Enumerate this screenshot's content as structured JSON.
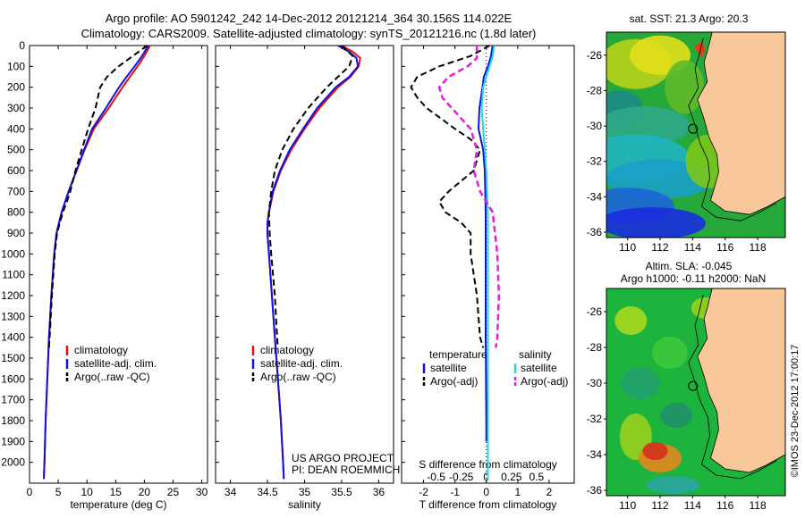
{
  "header": {
    "line1": "Argo profile: AO 5901242_242 14-Dec-2012 20121214_364 30.156S 114.022E",
    "line2": "Climatology: CARS2009. Satellite-adjusted climatology: synTS_20121216.nc (1.8d later)"
  },
  "colors": {
    "climatology": "#e01010",
    "satellite": "#1010e0",
    "argo": "#000000",
    "sat_salinity": "#20d8e8",
    "argo_salinity_adj": "#e020d8"
  },
  "chart_data": [
    {
      "type": "line",
      "panel": "temperature",
      "xlabel": "temperature (deg C)",
      "ylabel": "",
      "xlim": [
        0,
        31
      ],
      "ylim": [
        2100,
        0
      ],
      "xticks": [
        0,
        5,
        10,
        15,
        20,
        25,
        30
      ],
      "yticks": [
        0,
        100,
        200,
        300,
        400,
        500,
        600,
        700,
        800,
        900,
        1000,
        1100,
        1200,
        1300,
        1400,
        1500,
        1600,
        1700,
        1800,
        1900,
        2000
      ],
      "legend": [
        "climatology",
        "satellite-adj. clim.",
        "Argo(..raw -QC)"
      ],
      "legend_position": "lower-right",
      "series": [
        {
          "name": "climatology",
          "y": [
            0,
            50,
            100,
            150,
            200,
            300,
            400,
            500,
            600,
            700,
            800,
            900,
            1000,
            1200,
            1400,
            1600,
            1800,
            2000,
            2080
          ],
          "x": [
            21,
            20,
            18.8,
            17.5,
            16.2,
            13.8,
            11.2,
            9.6,
            8.2,
            6.8,
            5.6,
            4.7,
            4.3,
            3.8,
            3.4,
            3.1,
            2.8,
            2.6,
            2.5
          ]
        },
        {
          "name": "satellite-adj. clim.",
          "y": [
            0,
            50,
            100,
            150,
            200,
            300,
            400,
            500,
            600,
            700,
            800,
            900,
            1000,
            1200,
            1400,
            1600,
            1800,
            2000,
            2080
          ],
          "x": [
            20.7,
            19.6,
            18.3,
            16.9,
            15.6,
            13.3,
            10.9,
            9.5,
            8.2,
            6.8,
            5.6,
            4.7,
            4.3,
            3.8,
            3.4,
            3.1,
            2.8,
            2.6,
            2.5
          ]
        },
        {
          "name": "Argo(..raw -QC)",
          "y": [
            0,
            50,
            100,
            150,
            200,
            300,
            400,
            500,
            600,
            700,
            750,
            800,
            900,
            1000,
            1200,
            1400,
            1450
          ],
          "x": [
            20.5,
            18,
            15.5,
            13.5,
            12.3,
            11.5,
            10.2,
            9.1,
            8,
            7.1,
            6.5,
            5.8,
            4.8,
            4.4,
            3.9,
            3.5,
            3.4
          ]
        }
      ]
    },
    {
      "type": "line",
      "panel": "salinity",
      "xlabel": "salinity",
      "xlim": [
        33.8,
        36.2
      ],
      "ylim": [
        2100,
        0
      ],
      "xticks": [
        34,
        34.5,
        35,
        35.5,
        36
      ],
      "legend": [
        "climatology",
        "satellite-adj. clim.",
        "Argo(..raw -QC)"
      ],
      "legend_position": "lower-right",
      "annotation": [
        "US ARGO PROJECT",
        "PI: DEAN ROEMMICH"
      ],
      "series": [
        {
          "name": "climatology",
          "y": [
            0,
            30,
            60,
            100,
            150,
            200,
            300,
            400,
            500,
            600,
            700,
            800,
            850,
            900,
            1000,
            1200,
            1400,
            1600,
            1800,
            2000,
            2080
          ],
          "x": [
            35.5,
            35.65,
            35.75,
            35.73,
            35.62,
            35.45,
            35.2,
            35.0,
            34.82,
            34.68,
            34.58,
            34.52,
            34.5,
            34.5,
            34.52,
            34.56,
            34.6,
            34.64,
            34.68,
            34.71,
            34.72
          ]
        },
        {
          "name": "satellite-adj. clim.",
          "y": [
            0,
            30,
            60,
            100,
            150,
            200,
            300,
            400,
            500,
            600,
            700,
            800,
            850,
            900,
            1000,
            1200,
            1400,
            1600,
            1800,
            2000,
            2080
          ],
          "x": [
            35.45,
            35.6,
            35.7,
            35.72,
            35.6,
            35.42,
            35.17,
            34.98,
            34.8,
            34.67,
            34.57,
            34.52,
            34.5,
            34.5,
            34.52,
            34.56,
            34.6,
            34.64,
            34.68,
            34.71,
            34.72
          ]
        },
        {
          "name": "Argo(..raw -QC)",
          "y": [
            0,
            50,
            100,
            150,
            200,
            300,
            400,
            500,
            600,
            700,
            800,
            900,
            1000,
            1200,
            1400,
            1450
          ],
          "x": [
            35.5,
            35.65,
            35.6,
            35.45,
            35.3,
            35.05,
            34.85,
            34.7,
            34.6,
            34.55,
            34.52,
            34.53,
            34.55,
            34.6,
            34.63,
            34.64
          ]
        }
      ]
    },
    {
      "type": "line",
      "panel": "difference",
      "xlabel": "T difference from climatology",
      "top_xlabel": "S difference from climatology",
      "xlim": [
        -2.7,
        2.8
      ],
      "ylim": [
        2100,
        0
      ],
      "xticks": [
        -2,
        -1,
        0,
        1,
        2
      ],
      "top_xticks": [
        "-0.5",
        "-0.25",
        "0",
        "0.25",
        "0.5"
      ],
      "legend_titles": [
        "temperature",
        "salinity"
      ],
      "legend_temperature": [
        "satellite",
        "Argo(-adj)"
      ],
      "legend_salinity": [
        "satellite",
        "Argo(-adj)"
      ],
      "series": [
        {
          "name": "temperature satellite",
          "y": [
            0,
            50,
            100,
            150,
            200,
            300,
            400,
            500,
            600,
            800,
            1000,
            1400,
            1800,
            1900
          ],
          "x": [
            0.2,
            0.15,
            0.05,
            -0.08,
            -0.12,
            -0.22,
            -0.25,
            -0.1,
            -0.05,
            -0.02,
            -0.02,
            -0.02,
            0,
            0
          ]
        },
        {
          "name": "temperature Argo(-adj)",
          "y": [
            0,
            50,
            100,
            150,
            200,
            250,
            300,
            400,
            450,
            500,
            600,
            700,
            750,
            800,
            850,
            900,
            1000,
            1200,
            1400,
            1450
          ],
          "x": [
            0.1,
            -0.5,
            -1.5,
            -2.2,
            -2.4,
            -2.2,
            -1.9,
            -1.0,
            -0.5,
            -0.2,
            -0.4,
            -1.2,
            -1.5,
            -1.3,
            -0.8,
            -0.5,
            -0.5,
            -0.3,
            -0.2,
            -0.1
          ]
        },
        {
          "name": "salinity satellite",
          "y": [
            0,
            50,
            100,
            150,
            200,
            300,
            400,
            500,
            600,
            700,
            800,
            1000,
            1200,
            1400,
            1600,
            1800,
            2000,
            2080
          ],
          "x": [
            0.25,
            0.2,
            0.1,
            0,
            -0.1,
            -0.15,
            -0.1,
            -0.05,
            0,
            0.02,
            0.05,
            0.05,
            0.05,
            0.05,
            0.05,
            0.05,
            0.05,
            0.05
          ]
        },
        {
          "name": "salinity Argo(-adj)",
          "y": [
            0,
            60,
            100,
            150,
            200,
            250,
            300,
            400,
            500,
            600,
            700,
            800,
            1000,
            1200,
            1400,
            1450
          ],
          "x": [
            -0.3,
            -0.3,
            -0.6,
            -1.2,
            -1.5,
            -1.4,
            -1.1,
            -0.5,
            -0.3,
            -0.4,
            -0.2,
            0.2,
            0.35,
            0.4,
            0.35,
            0.3
          ]
        }
      ]
    }
  ],
  "maps": {
    "sst": {
      "title": "sat. SST: 21.3 Argo: 20.3",
      "lat_ticks": [
        "-26",
        "-28",
        "-30",
        "-32",
        "-34",
        "-36"
      ],
      "lon_ticks": [
        "110",
        "112",
        "114",
        "116",
        "118"
      ],
      "argo_lon": 114.022,
      "argo_lat": -30.156
    },
    "sla": {
      "title_line1": "Altim. SLA: -0.045",
      "title_line2": "Argo h1000: -0.11 h2000: NaN",
      "lat_ticks": [
        "-26",
        "-28",
        "-30",
        "-32",
        "-34",
        "-36"
      ],
      "lon_ticks": [
        "110",
        "112",
        "114",
        "116",
        "118"
      ],
      "side_label": "©IMOS 23-Dec-2012 17:00:17",
      "argo_lon": 114.022,
      "argo_lat": -30.156
    }
  }
}
